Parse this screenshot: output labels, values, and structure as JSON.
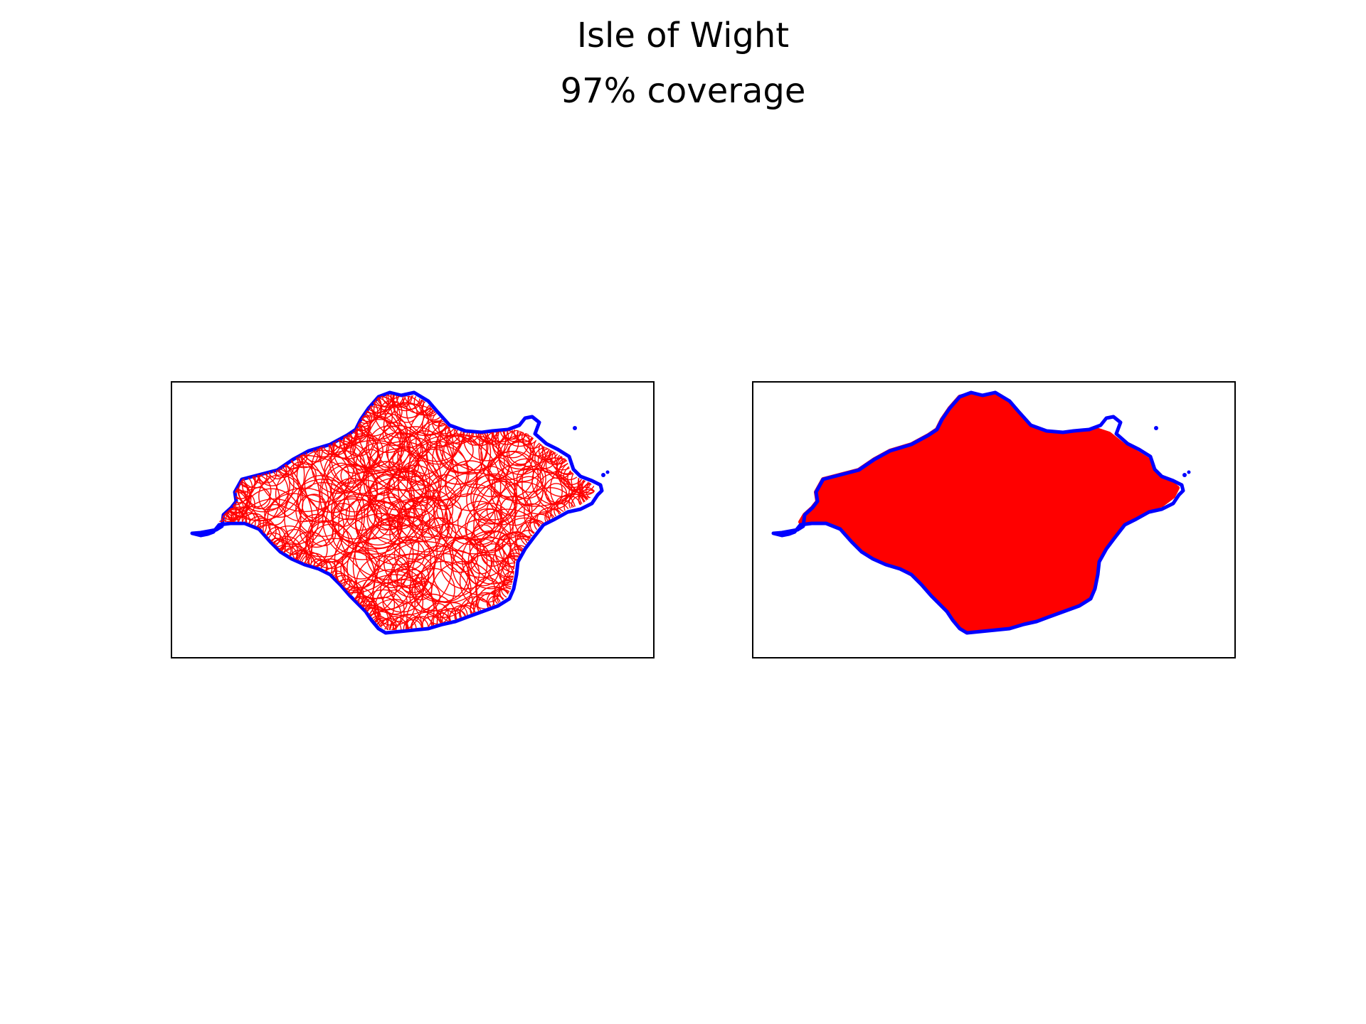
{
  "figure": {
    "title": "Isle of Wight",
    "subtitle": "97% coverage"
  },
  "panels": [
    {
      "mode": "circles"
    },
    {
      "mode": "filled"
    }
  ],
  "colors": {
    "coastline": "#0000ff",
    "coverage": "#ff0000",
    "frame": "#000000",
    "background": "#ffffff"
  },
  "coverage_percent": 97
}
